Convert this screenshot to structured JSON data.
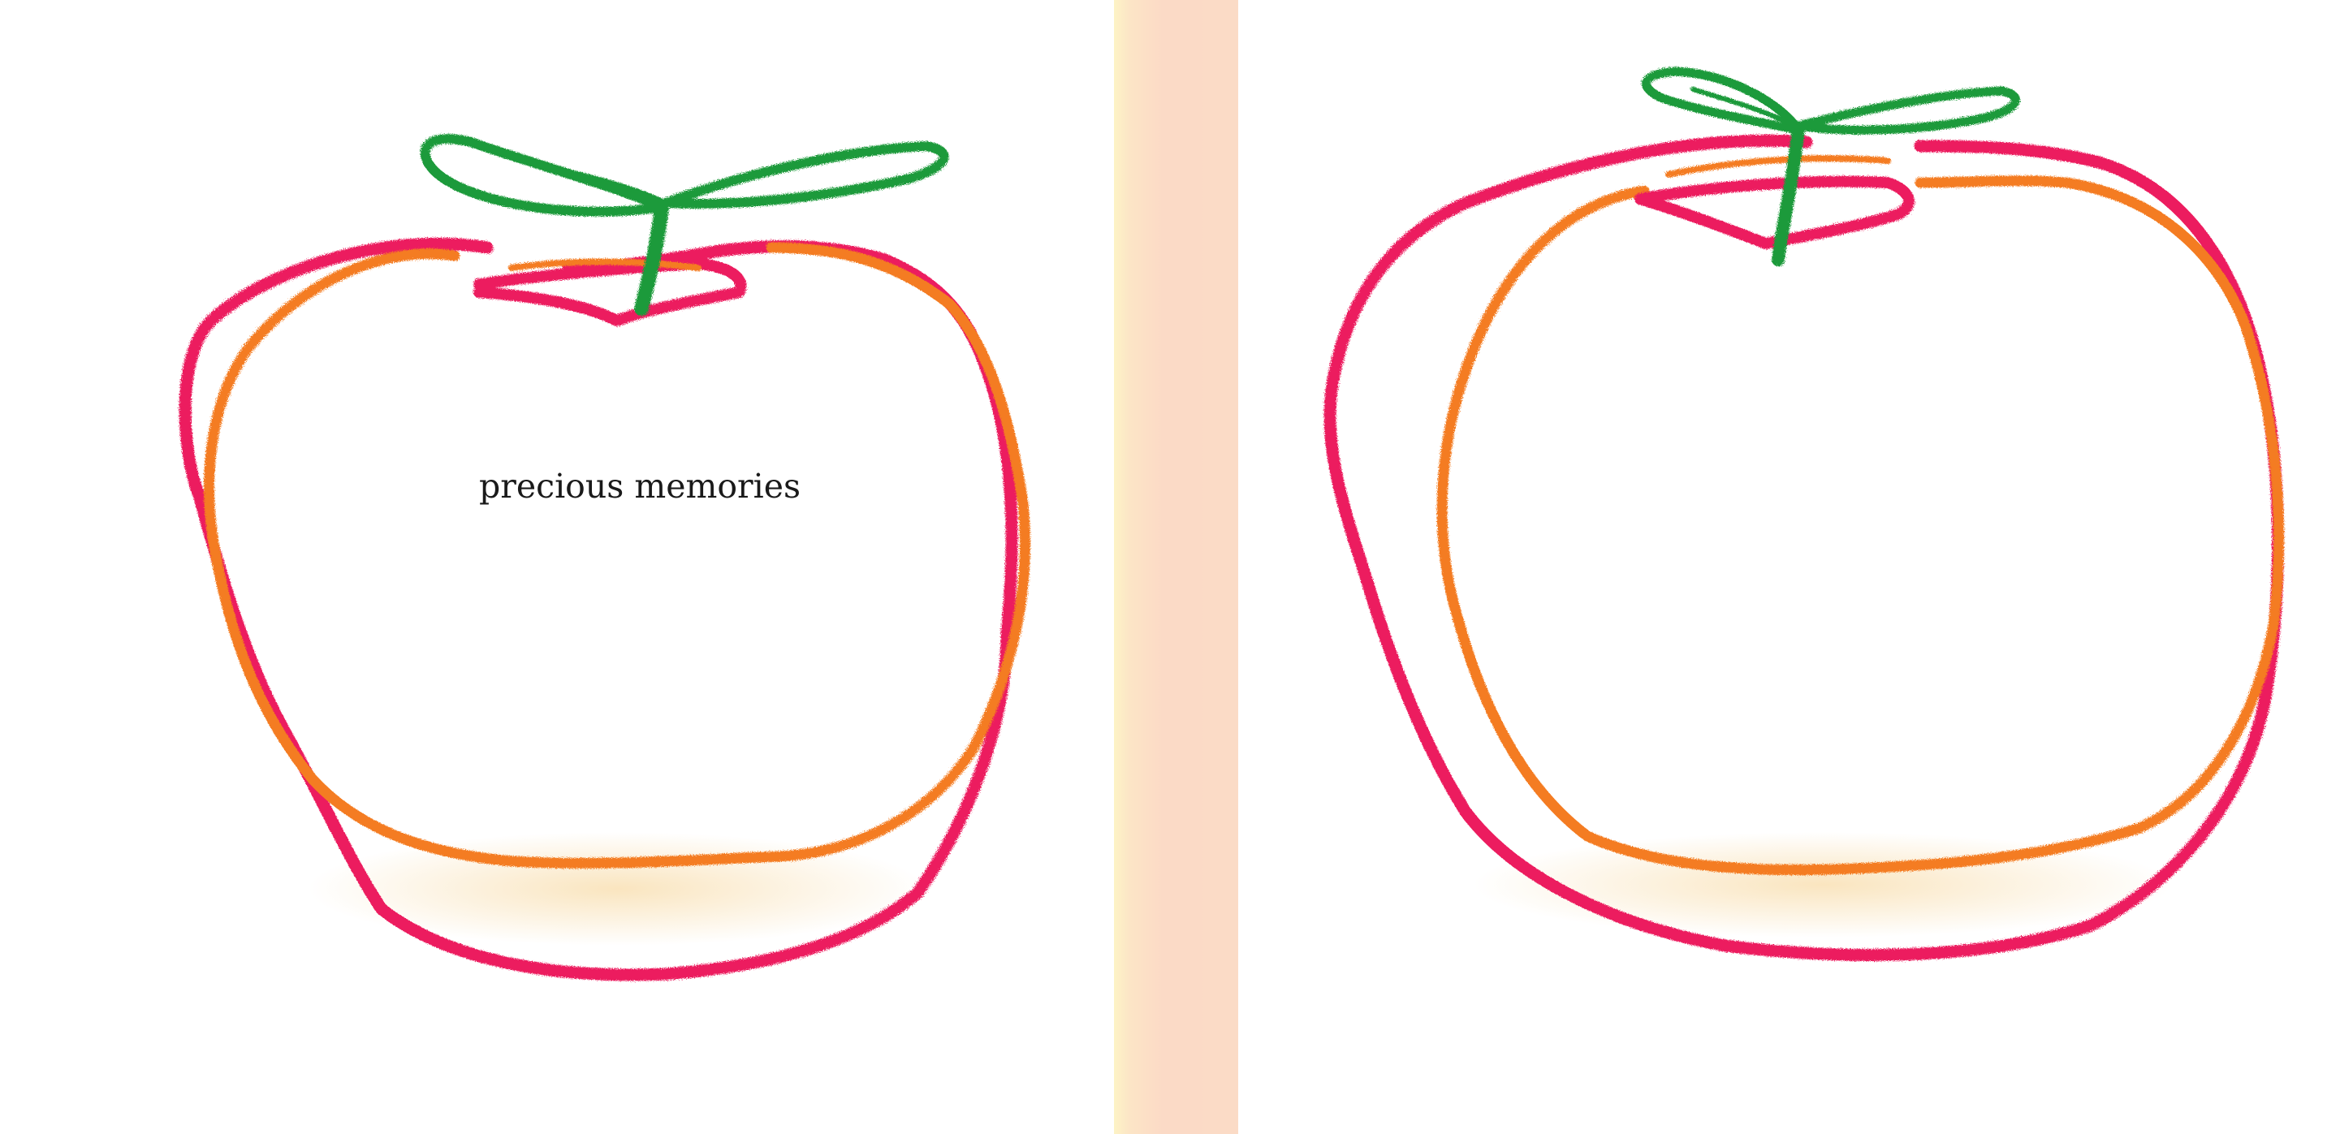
{
  "page": {
    "caption": "precious memories"
  },
  "colors": {
    "apple_outline_pink": "#ec1d5e",
    "apple_outline_orange": "#f47c20",
    "leaf_green": "#1f9a3a",
    "spine_orange": "#f26b1d",
    "spine_yellow": "#f9d21a",
    "bottom_shadow": "#f9e2b8"
  },
  "icons": {
    "left_illustration": "apple-crayon-drawing-icon",
    "right_illustration": "apple-crayon-drawing-icon",
    "spine": "crayon-stripe"
  }
}
